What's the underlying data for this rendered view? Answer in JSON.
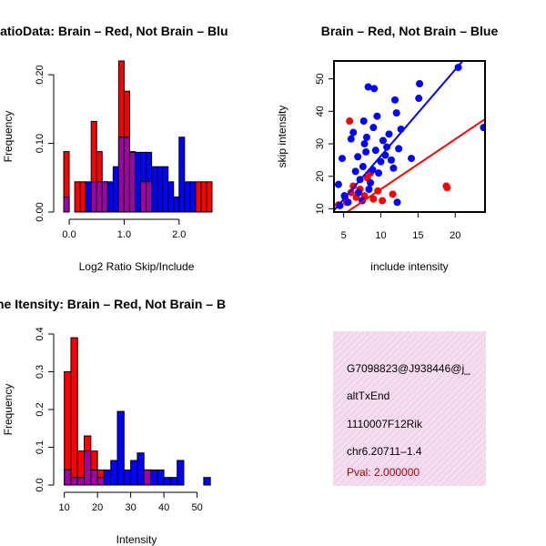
{
  "colors": {
    "brain": "#ff0000",
    "not_brain": "#0000ff",
    "overlap_fill": "#9a00b0",
    "overlap_hatch": "#d0008a",
    "info_bg": "#f5dcef",
    "info_hatch": "#e8bde0",
    "pval": "#b00000"
  },
  "chart_data": [
    {
      "type": "bar",
      "subtype": "overlaid-histogram",
      "title": "RatioData: Brain – Red, Not Brain – Blu",
      "xlabel": "Log2 Ratio Skip/Include",
      "ylabel": "Frequency",
      "xlim": [
        -0.15,
        2.6
      ],
      "ylim": [
        0,
        0.22
      ],
      "x_ticks": [
        0,
        1,
        2
      ],
      "x_tick_labels": [
        "0.0",
        "1.0",
        "2.0"
      ],
      "y_ticks": [
        0,
        0.1,
        0.2
      ],
      "y_tick_labels": [
        "0.00",
        "0.10",
        "0.20"
      ],
      "bin_width": 0.1,
      "bin_starts": [
        -0.1,
        0.0,
        0.1,
        0.2,
        0.3,
        0.4,
        0.5,
        0.6,
        0.7,
        0.8,
        0.9,
        1.0,
        1.1,
        1.2,
        1.3,
        1.4,
        1.5,
        1.6,
        1.7,
        1.8,
        1.9,
        2.0,
        2.1,
        2.2,
        2.3,
        2.4,
        2.5
      ],
      "series": [
        {
          "name": "Brain",
          "color": "red",
          "values": [
            0.088,
            0.0,
            0.044,
            0.044,
            0.0,
            0.132,
            0.088,
            0.044,
            0.0,
            0.0,
            0.22,
            0.176,
            0.088,
            0.0,
            0.044,
            0.044,
            0.0,
            0.0,
            0.0,
            0.0,
            0.0,
            0.0,
            0.0,
            0.0,
            0.044,
            0.044,
            0.044
          ]
        },
        {
          "name": "Not Brain",
          "color": "blue",
          "values": [
            0.022,
            0.0,
            0.0,
            0.0,
            0.044,
            0.044,
            0.044,
            0.044,
            0.044,
            0.066,
            0.109,
            0.109,
            0.087,
            0.087,
            0.087,
            0.087,
            0.066,
            0.066,
            0.066,
            0.044,
            0.022,
            0.109,
            0.044,
            0.044,
            0.0,
            0.0,
            0.0
          ]
        }
      ]
    },
    {
      "type": "scatter",
      "title": "Brain – Red, Not Brain – Blue",
      "xlabel": "include intensity",
      "ylabel": "skip intensity",
      "xlim": [
        3.7,
        24.0
      ],
      "ylim": [
        9.0,
        55.5
      ],
      "x_ticks": [
        5,
        10,
        15,
        20
      ],
      "y_ticks": [
        10,
        20,
        30,
        40,
        50
      ],
      "series": [
        {
          "name": "Brain",
          "color": "red",
          "points": [
            [
              4.3,
              11.2
            ],
            [
              5.2,
              13.5
            ],
            [
              5.4,
              12.0
            ],
            [
              5.8,
              37.0
            ],
            [
              6.0,
              15.0
            ],
            [
              6.3,
              17.0
            ],
            [
              6.7,
              13.5
            ],
            [
              7.2,
              16.0
            ],
            [
              7.8,
              14.0
            ],
            [
              8.2,
              19.5
            ],
            [
              8.6,
              21.0
            ],
            [
              9.0,
              13.0
            ],
            [
              9.6,
              15.5
            ],
            [
              10.2,
              12.5
            ],
            [
              11.6,
              14.5
            ],
            [
              18.8,
              17.0
            ],
            [
              18.9,
              16.5
            ]
          ],
          "fit_line": [
            [
              3.7,
              6.3
            ],
            [
              24.0,
              37.6
            ]
          ]
        },
        {
          "name": "Not Brain",
          "color": "blue",
          "points": [
            [
              4.3,
              17.5
            ],
            [
              4.5,
              11.0
            ],
            [
              4.8,
              25.5
            ],
            [
              5.1,
              14.0
            ],
            [
              5.6,
              12.0
            ],
            [
              6.0,
              31.5
            ],
            [
              6.3,
              33.5
            ],
            [
              6.6,
              21.5
            ],
            [
              6.9,
              26.0
            ],
            [
              7.0,
              15.0
            ],
            [
              7.2,
              19.0
            ],
            [
              7.5,
              12.5
            ],
            [
              7.6,
              23.0
            ],
            [
              7.7,
              37.0
            ],
            [
              7.8,
              30.0
            ],
            [
              8.0,
              27.5
            ],
            [
              8.1,
              32.0
            ],
            [
              8.3,
              47.5
            ],
            [
              8.4,
              16.0
            ],
            [
              8.6,
              18.0
            ],
            [
              8.9,
              22.0
            ],
            [
              9.0,
              35.0
            ],
            [
              9.1,
              47.0
            ],
            [
              9.3,
              28.0
            ],
            [
              9.5,
              38.5
            ],
            [
              9.7,
              21.0
            ],
            [
              10.0,
              24.5
            ],
            [
              10.3,
              31.0
            ],
            [
              10.6,
              26.5
            ],
            [
              10.8,
              29.0
            ],
            [
              11.1,
              33.0
            ],
            [
              11.4,
              25.0
            ],
            [
              11.7,
              22.5
            ],
            [
              11.9,
              43.5
            ],
            [
              12.1,
              39.5
            ],
            [
              12.2,
              12.0
            ],
            [
              12.4,
              28.5
            ],
            [
              12.7,
              34.5
            ],
            [
              14.1,
              25.5
            ],
            [
              15.1,
              44.0
            ],
            [
              15.2,
              48.5
            ],
            [
              20.4,
              53.5
            ],
            [
              23.8,
              35.0
            ]
          ],
          "fit_line": [
            [
              3.7,
              9.5
            ],
            [
              21.0,
              55.5
            ]
          ]
        }
      ]
    },
    {
      "type": "bar",
      "subtype": "overlaid-histogram",
      "title": "ne Itensity: Brain – Red, Not Brain – B",
      "xlabel": "Intensity",
      "ylabel": "Frequency",
      "xlim": [
        9.0,
        54.5
      ],
      "ylim": [
        0,
        0.4
      ],
      "x_ticks": [
        10,
        20,
        30,
        40,
        50
      ],
      "y_ticks": [
        0,
        0.1,
        0.2,
        0.3,
        0.4
      ],
      "y_tick_labels": [
        "0.0",
        "0.1",
        "0.2",
        "0.3",
        "0.4"
      ],
      "bin_width": 2,
      "bin_starts": [
        10,
        12,
        14,
        16,
        18,
        20,
        22,
        24,
        26,
        28,
        30,
        32,
        34,
        36,
        38,
        40,
        42,
        44,
        46,
        48,
        50,
        52
      ],
      "series": [
        {
          "name": "Brain",
          "color": "red",
          "values": [
            0.3,
            0.39,
            0.09,
            0.13,
            0.09,
            0.04,
            0.0,
            0.0,
            0.0,
            0.0,
            0.0,
            0.0,
            0.04,
            0.0,
            0.0,
            0.0,
            0.0,
            0.0,
            0.0,
            0.0,
            0.0,
            0.0
          ]
        },
        {
          "name": "Not Brain",
          "color": "blue",
          "values": [
            0.04,
            0.02,
            0.02,
            0.09,
            0.04,
            0.02,
            0.04,
            0.065,
            0.195,
            0.04,
            0.065,
            0.085,
            0.04,
            0.04,
            0.04,
            0.02,
            0.02,
            0.065,
            0.0,
            0.0,
            0.0,
            0.02
          ]
        }
      ]
    }
  ],
  "info_panel": {
    "probe_id": "G7098823@J938446@j_",
    "event_type": "altTxEnd",
    "gene_name": "1110007F12Rik",
    "location": "chr6.20711–1.4",
    "pval": "Pval: 2.000000"
  }
}
